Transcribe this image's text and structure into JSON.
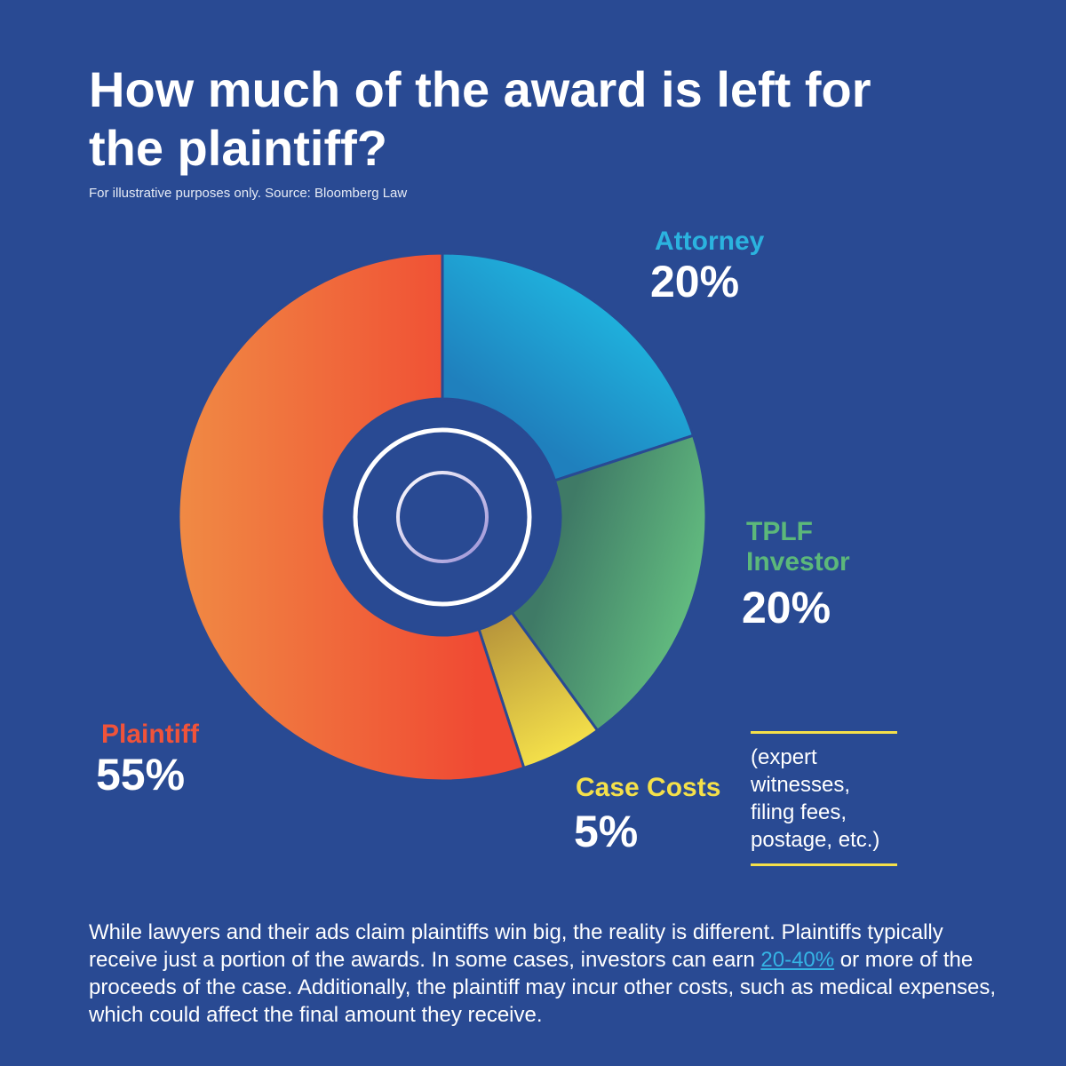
{
  "header": {
    "title": "How much of the award is left for the plaintiff?",
    "source": "For illustrative purposes only. Source: Bloomberg Law"
  },
  "chart_data": {
    "type": "pie",
    "style": "donut",
    "unit": "%",
    "slices": [
      {
        "name": "Attorney",
        "value": 20,
        "label": "20%",
        "color": "#1fb0dc",
        "color2": "#1f80bd"
      },
      {
        "name": "TPLF Investor",
        "value": 20,
        "label": "20%",
        "color": "#62bb7f",
        "color2": "#3f7a66"
      },
      {
        "name": "Case Costs",
        "value": 5,
        "label": "5%",
        "color": "#f4e04a",
        "color2": "#b8963b"
      },
      {
        "name": "Plaintiff",
        "value": 55,
        "label": "55%",
        "color": "#f08a44",
        "color2": "#f04a33"
      }
    ],
    "labels": {
      "attorney_name": "Attorney",
      "investor_name_line1": "TPLF",
      "investor_name_line2": "Investor",
      "costs_name": "Case Costs",
      "plaintiff_name": "Plaintiff"
    }
  },
  "case_costs_note": [
    "(expert",
    "witnesses,",
    "filing fees,",
    "postage, etc.)"
  ],
  "body": {
    "text_before": "While lawyers and their ads claim plaintiffs win big, the reality is different. Plaintiffs typically receive just a portion of the awards. In some cases, investors can earn ",
    "link": "20-40%",
    "text_after": " or more of the proceeds of the case. Additionally, the plaintiff may incur other costs, such as medical expenses, which could affect the final amount they receive."
  }
}
